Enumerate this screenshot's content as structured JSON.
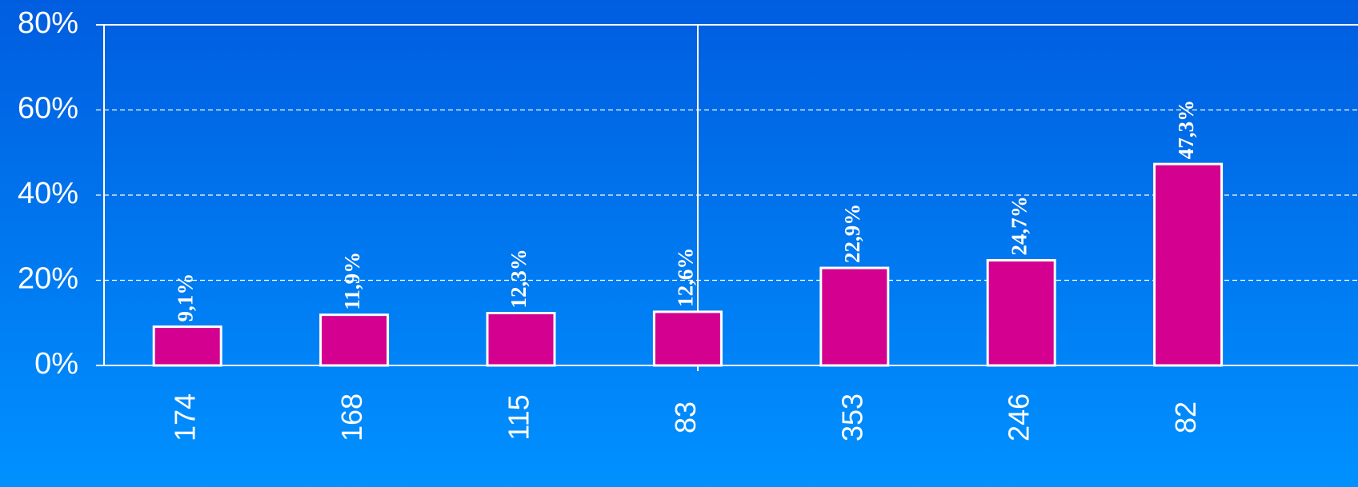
{
  "chart_data": {
    "type": "bar",
    "categories": [
      "174",
      "168",
      "115",
      "83",
      "353",
      "246",
      "82"
    ],
    "values": [
      9.1,
      11.9,
      12.3,
      12.6,
      22.9,
      24.7,
      47.3
    ],
    "value_labels": [
      "9,1%",
      "11,9%",
      "12,3%",
      "12,6%",
      "22,9%",
      "24,7%",
      "47,3%"
    ],
    "color": "#d4008f",
    "ylim": [
      0,
      80
    ],
    "yticks": [
      {
        "value": 0,
        "label": "0%"
      },
      {
        "value": 20,
        "label": "20%"
      },
      {
        "value": 40,
        "label": "40%"
      },
      {
        "value": 60,
        "label": "60%"
      },
      {
        "value": 80,
        "label": "80%"
      }
    ],
    "grid": true
  }
}
